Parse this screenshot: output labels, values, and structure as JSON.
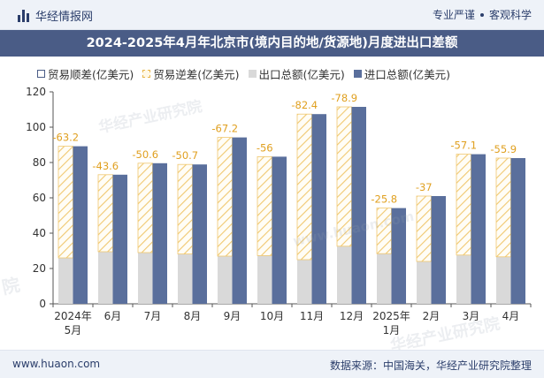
{
  "header": {
    "brand_name": "华经情报网",
    "logo_icon": "bar-logo-icon",
    "slogan_left": "专业严谨",
    "slogan_right": "客观科学"
  },
  "watermarks": [
    "华经产业研究院",
    "www.huaon.com",
    "华经产业研究院",
    "院"
  ],
  "footer": {
    "website": "www.huaon.com",
    "source": "数据来源：中国海关，华经产业研究院整理"
  },
  "chart_data": {
    "type": "bar",
    "title": "2024-2025年4月年北京市(境内目的地/货源地)月度进出口差额",
    "categories": [
      "2024年5月",
      "6月",
      "7月",
      "8月",
      "9月",
      "10月",
      "11月",
      "12月",
      "2025年1月",
      "2月",
      "3月",
      "4月"
    ],
    "series": [
      {
        "name": "贸易顺差(亿美元)",
        "color": "#ffffff",
        "values": [
          null,
          null,
          null,
          null,
          null,
          null,
          null,
          null,
          null,
          null,
          null,
          null
        ]
      },
      {
        "name": "贸易逆差(亿美元)",
        "color": "#e8b64a",
        "values": [
          -63.2,
          -43.6,
          -50.6,
          -50.7,
          -67.2,
          -56,
          -82.4,
          -78.9,
          -25.8,
          -37,
          -57.1,
          -55.9
        ]
      },
      {
        "name": "出口总额(亿美元)",
        "color": "#d9d9d9",
        "values": [
          26,
          29.5,
          29,
          28.2,
          27,
          27.3,
          25,
          32.6,
          28.4,
          24,
          27.6,
          26.6
        ]
      },
      {
        "name": "进口总额(亿美元)",
        "color": "#5a6f9c",
        "values": [
          89.2,
          73.1,
          79.6,
          78.9,
          94.2,
          83.3,
          107.4,
          111.5,
          54.2,
          61,
          84.7,
          82.5
        ]
      }
    ],
    "ylim": [
      0,
      120
    ],
    "yticks": [
      0,
      20,
      40,
      60,
      80,
      100,
      120
    ],
    "legend_position": "top-left",
    "grid": false
  }
}
